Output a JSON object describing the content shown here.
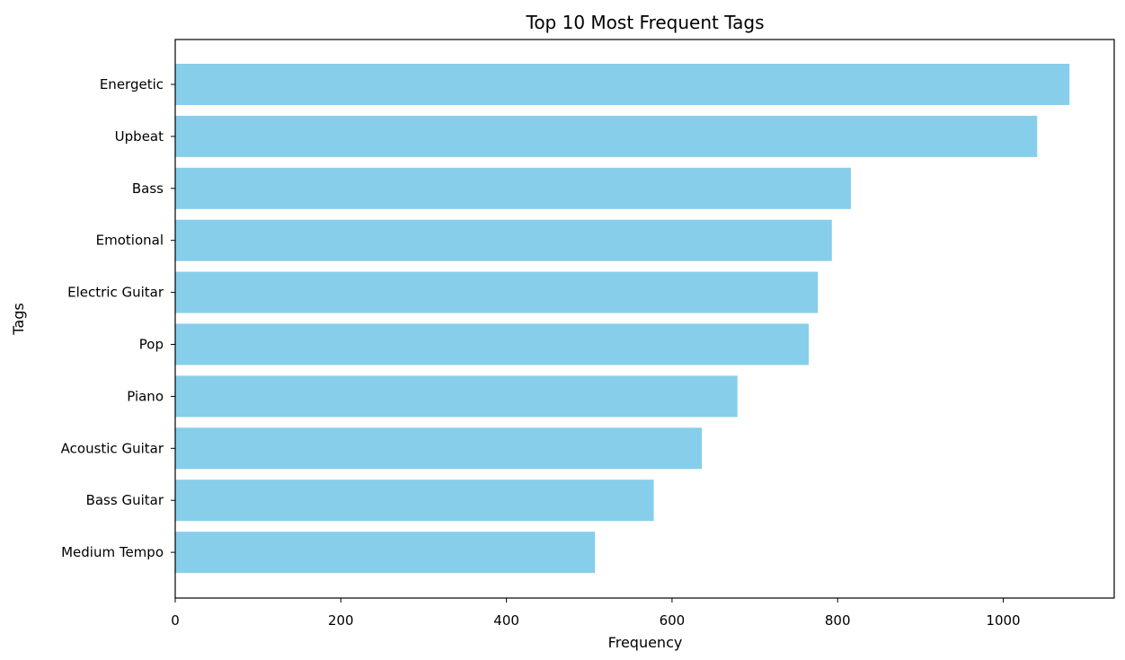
{
  "chart_data": {
    "type": "bar",
    "orientation": "horizontal",
    "title": "Top 10 Most Frequent Tags",
    "xlabel": "Frequency",
    "ylabel": "Tags",
    "categories": [
      "Energetic",
      "Upbeat",
      "Bass",
      "Emotional",
      "Electric Guitar",
      "Pop",
      "Piano",
      "Acoustic Guitar",
      "Bass Guitar",
      "Medium Tempo"
    ],
    "values": [
      1080,
      1041,
      816,
      793,
      776,
      765,
      679,
      636,
      578,
      507
    ],
    "xlim": [
      0,
      1134
    ],
    "xticks": [
      0,
      200,
      400,
      600,
      800,
      1000
    ],
    "grid": false,
    "bar_color": "#87CEEB"
  }
}
